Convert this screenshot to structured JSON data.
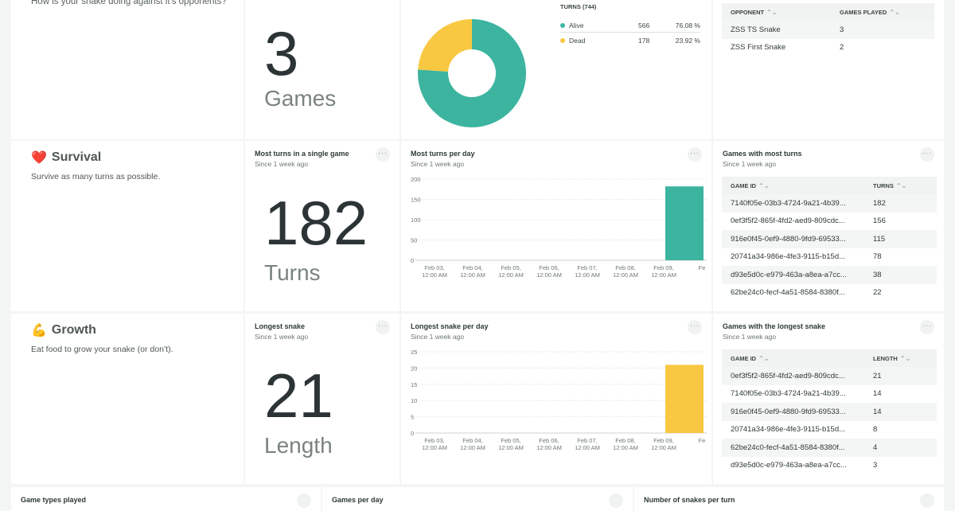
{
  "colors": {
    "teal": "#3cb4a0",
    "yellow": "#f8c842"
  },
  "intro": {
    "question": "How is your snake doing against it's opponents?"
  },
  "games_stat": {
    "value": "3",
    "unit": "Games"
  },
  "turns_donut": {
    "header": "TURNS (744)",
    "rows": [
      {
        "label": "Alive",
        "count": "566",
        "percent": "76.08 %",
        "color": "#3cb4a0"
      },
      {
        "label": "Dead",
        "count": "178",
        "percent": "23.92 %",
        "color": "#f8c842"
      }
    ]
  },
  "opponents_table": {
    "col1": "OPPONENT",
    "col2": "GAMES PLAYED",
    "rows": [
      {
        "name": "ZSS TS Snake",
        "games": "3"
      },
      {
        "name": "ZSS First Snake",
        "games": "2"
      }
    ]
  },
  "survival": {
    "emoji": "❤️",
    "title": "Survival",
    "desc": "Survive as many turns as possible.",
    "stat": {
      "title": "Most turns in a single game",
      "sub": "Since 1 week ago",
      "value": "182",
      "unit": "Turns"
    },
    "chart": {
      "title": "Most turns per day",
      "sub": "Since 1 week ago"
    },
    "table": {
      "title": "Games with most turns",
      "sub": "Since 1 week ago",
      "col1": "GAME ID",
      "col2": "TURNS",
      "rows": [
        {
          "id": "7140f05e-03b3-4724-9a21-4b39...",
          "v": "182"
        },
        {
          "id": "0ef3f5f2-865f-4fd2-aed9-809cdc...",
          "v": "156"
        },
        {
          "id": "916e0f45-0ef9-4880-9fd9-69533...",
          "v": "115"
        },
        {
          "id": "20741a34-986e-4fe3-9115-b15d...",
          "v": "78"
        },
        {
          "id": "d93e5d0c-e979-463a-a8ea-a7cc...",
          "v": "38"
        },
        {
          "id": "62be24c0-fecf-4a51-8584-8380f...",
          "v": "22"
        }
      ]
    }
  },
  "growth": {
    "emoji": "💪",
    "title": "Growth",
    "desc": "Eat food to grow your snake (or don’t).",
    "stat": {
      "title": "Longest snake",
      "sub": "Since 1 week ago",
      "value": "21",
      "unit": "Length"
    },
    "chart": {
      "title": "Longest snake per day",
      "sub": "Since 1 week ago"
    },
    "table": {
      "title": "Games with the longest snake",
      "sub": "Since 1 week ago",
      "col1": "GAME ID",
      "col2": "LENGTH",
      "rows": [
        {
          "id": "0ef3f5f2-865f-4fd2-aed9-809cdc...",
          "v": "21"
        },
        {
          "id": "7140f05e-03b3-4724-9a21-4b39...",
          "v": "14"
        },
        {
          "id": "916e0f45-0ef9-4880-9fd9-69533...",
          "v": "14"
        },
        {
          "id": "20741a34-986e-4fe3-9115-b15d...",
          "v": "8"
        },
        {
          "id": "62be24c0-fecf-4a51-8584-8380f...",
          "v": "4"
        },
        {
          "id": "d93e5d0c-e979-463a-a8ea-a7cc...",
          "v": "3"
        }
      ]
    }
  },
  "bottom": {
    "w1": "Game types played",
    "w2": "Games per day",
    "w3": "Number of snakes per turn"
  },
  "chart_data": [
    {
      "type": "pie",
      "title": "TURNS (744)",
      "categories": [
        "Alive",
        "Dead"
      ],
      "values": [
        566,
        178
      ]
    },
    {
      "type": "bar",
      "title": "Most turns per day",
      "categories": [
        "Feb 03, 12:00 AM",
        "Feb 04, 12:00 AM",
        "Feb 05, 12:00 AM",
        "Feb 06, 12:00 AM",
        "Feb 07, 12:00 AM",
        "Feb 08, 12:00 AM",
        "Feb 09, 12:00 AM",
        "Fe"
      ],
      "values": [
        0,
        0,
        0,
        0,
        0,
        0,
        182,
        0
      ],
      "yticks": [
        "0",
        "50",
        "100",
        "150",
        "200"
      ],
      "ylim": [
        0,
        200
      ],
      "color": "#3cb4a0"
    },
    {
      "type": "bar",
      "title": "Longest snake per day",
      "categories": [
        "Feb 03, 12:00 AM",
        "Feb 04, 12:00 AM",
        "Feb 05, 12:00 AM",
        "Feb 06, 12:00 AM",
        "Feb 07, 12:00 AM",
        "Feb 08, 12:00 AM",
        "Feb 09, 12:00 AM",
        "Fe"
      ],
      "values": [
        0,
        0,
        0,
        0,
        0,
        0,
        21,
        0
      ],
      "yticks": [
        "0",
        "5",
        "10",
        "15",
        "20",
        "25"
      ],
      "ylim": [
        0,
        25
      ],
      "color": "#f8c842"
    }
  ]
}
